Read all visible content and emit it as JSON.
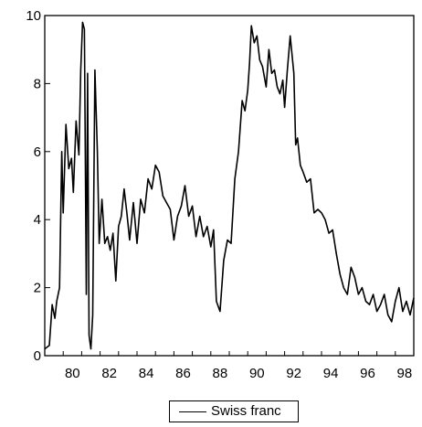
{
  "chart_data": {
    "type": "line",
    "title": "",
    "xlabel": "",
    "ylabel": "",
    "xlim": [
      1979,
      1999
    ],
    "ylim": [
      0,
      10
    ],
    "grid": false,
    "legend_position": "bottom-center",
    "x_ticks": [
      80,
      82,
      84,
      86,
      88,
      90,
      92,
      94,
      96,
      98
    ],
    "y_ticks": [
      0,
      2,
      4,
      6,
      8,
      10
    ],
    "series": [
      {
        "name": "Swiss franc",
        "color": "#000000",
        "x": [
          1979.0,
          1979.25,
          1979.4,
          1979.55,
          1979.65,
          1979.8,
          1979.92,
          1980.0,
          1980.15,
          1980.3,
          1980.45,
          1980.55,
          1980.7,
          1980.85,
          1980.95,
          1981.05,
          1981.15,
          1981.25,
          1981.32,
          1981.4,
          1981.5,
          1981.6,
          1981.72,
          1981.85,
          1981.95,
          1982.1,
          1982.25,
          1982.4,
          1982.55,
          1982.7,
          1982.85,
          1983.0,
          1983.15,
          1983.3,
          1983.45,
          1983.6,
          1983.8,
          1984.0,
          1984.2,
          1984.4,
          1984.6,
          1984.8,
          1985.0,
          1985.2,
          1985.4,
          1985.6,
          1985.8,
          1986.0,
          1986.2,
          1986.4,
          1986.6,
          1986.8,
          1987.0,
          1987.2,
          1987.4,
          1987.6,
          1987.8,
          1988.0,
          1988.15,
          1988.3,
          1988.5,
          1988.7,
          1988.9,
          1989.1,
          1989.3,
          1989.5,
          1989.7,
          1989.85,
          1990.0,
          1990.1,
          1990.2,
          1990.35,
          1990.5,
          1990.65,
          1990.8,
          1991.0,
          1991.15,
          1991.3,
          1991.45,
          1991.6,
          1991.75,
          1991.9,
          1992.0,
          1992.15,
          1992.3,
          1992.5,
          1992.6,
          1992.7,
          1992.85,
          1993.0,
          1993.2,
          1993.4,
          1993.6,
          1993.8,
          1994.0,
          1994.2,
          1994.4,
          1994.6,
          1994.8,
          1995.0,
          1995.2,
          1995.4,
          1995.6,
          1995.8,
          1996.0,
          1996.2,
          1996.4,
          1996.6,
          1996.8,
          1997.0,
          1997.2,
          1997.4,
          1997.6,
          1997.8,
          1998.0,
          1998.2,
          1998.4,
          1998.6,
          1998.8,
          1999.0
        ],
        "y": [
          0.2,
          0.3,
          1.5,
          1.1,
          1.6,
          2.0,
          6.0,
          4.2,
          6.8,
          5.5,
          5.8,
          4.8,
          6.9,
          5.9,
          8.4,
          9.8,
          9.6,
          1.8,
          8.3,
          0.6,
          0.2,
          1.2,
          8.4,
          6.0,
          3.3,
          4.6,
          3.3,
          3.5,
          3.1,
          3.6,
          2.2,
          3.8,
          4.1,
          4.9,
          4.2,
          3.4,
          4.5,
          3.3,
          4.6,
          4.2,
          5.2,
          4.9,
          5.6,
          5.4,
          4.7,
          4.5,
          4.3,
          3.4,
          4.1,
          4.4,
          5.0,
          4.1,
          4.4,
          3.5,
          4.1,
          3.5,
          3.8,
          3.2,
          3.7,
          1.6,
          1.3,
          2.8,
          3.4,
          3.3,
          5.2,
          6.0,
          7.5,
          7.2,
          7.8,
          8.6,
          9.7,
          9.2,
          9.4,
          8.7,
          8.5,
          7.9,
          9.0,
          8.3,
          8.4,
          7.9,
          7.7,
          8.1,
          7.3,
          8.4,
          9.4,
          8.3,
          6.2,
          6.4,
          5.6,
          5.4,
          5.1,
          5.2,
          4.2,
          4.3,
          4.2,
          4.0,
          3.6,
          3.7,
          3.0,
          2.4,
          2.0,
          1.8,
          2.6,
          2.3,
          1.8,
          2.0,
          1.6,
          1.5,
          1.8,
          1.3,
          1.5,
          1.8,
          1.2,
          1.0,
          1.6,
          2.0,
          1.3,
          1.6,
          1.2,
          1.7
        ]
      }
    ]
  }
}
